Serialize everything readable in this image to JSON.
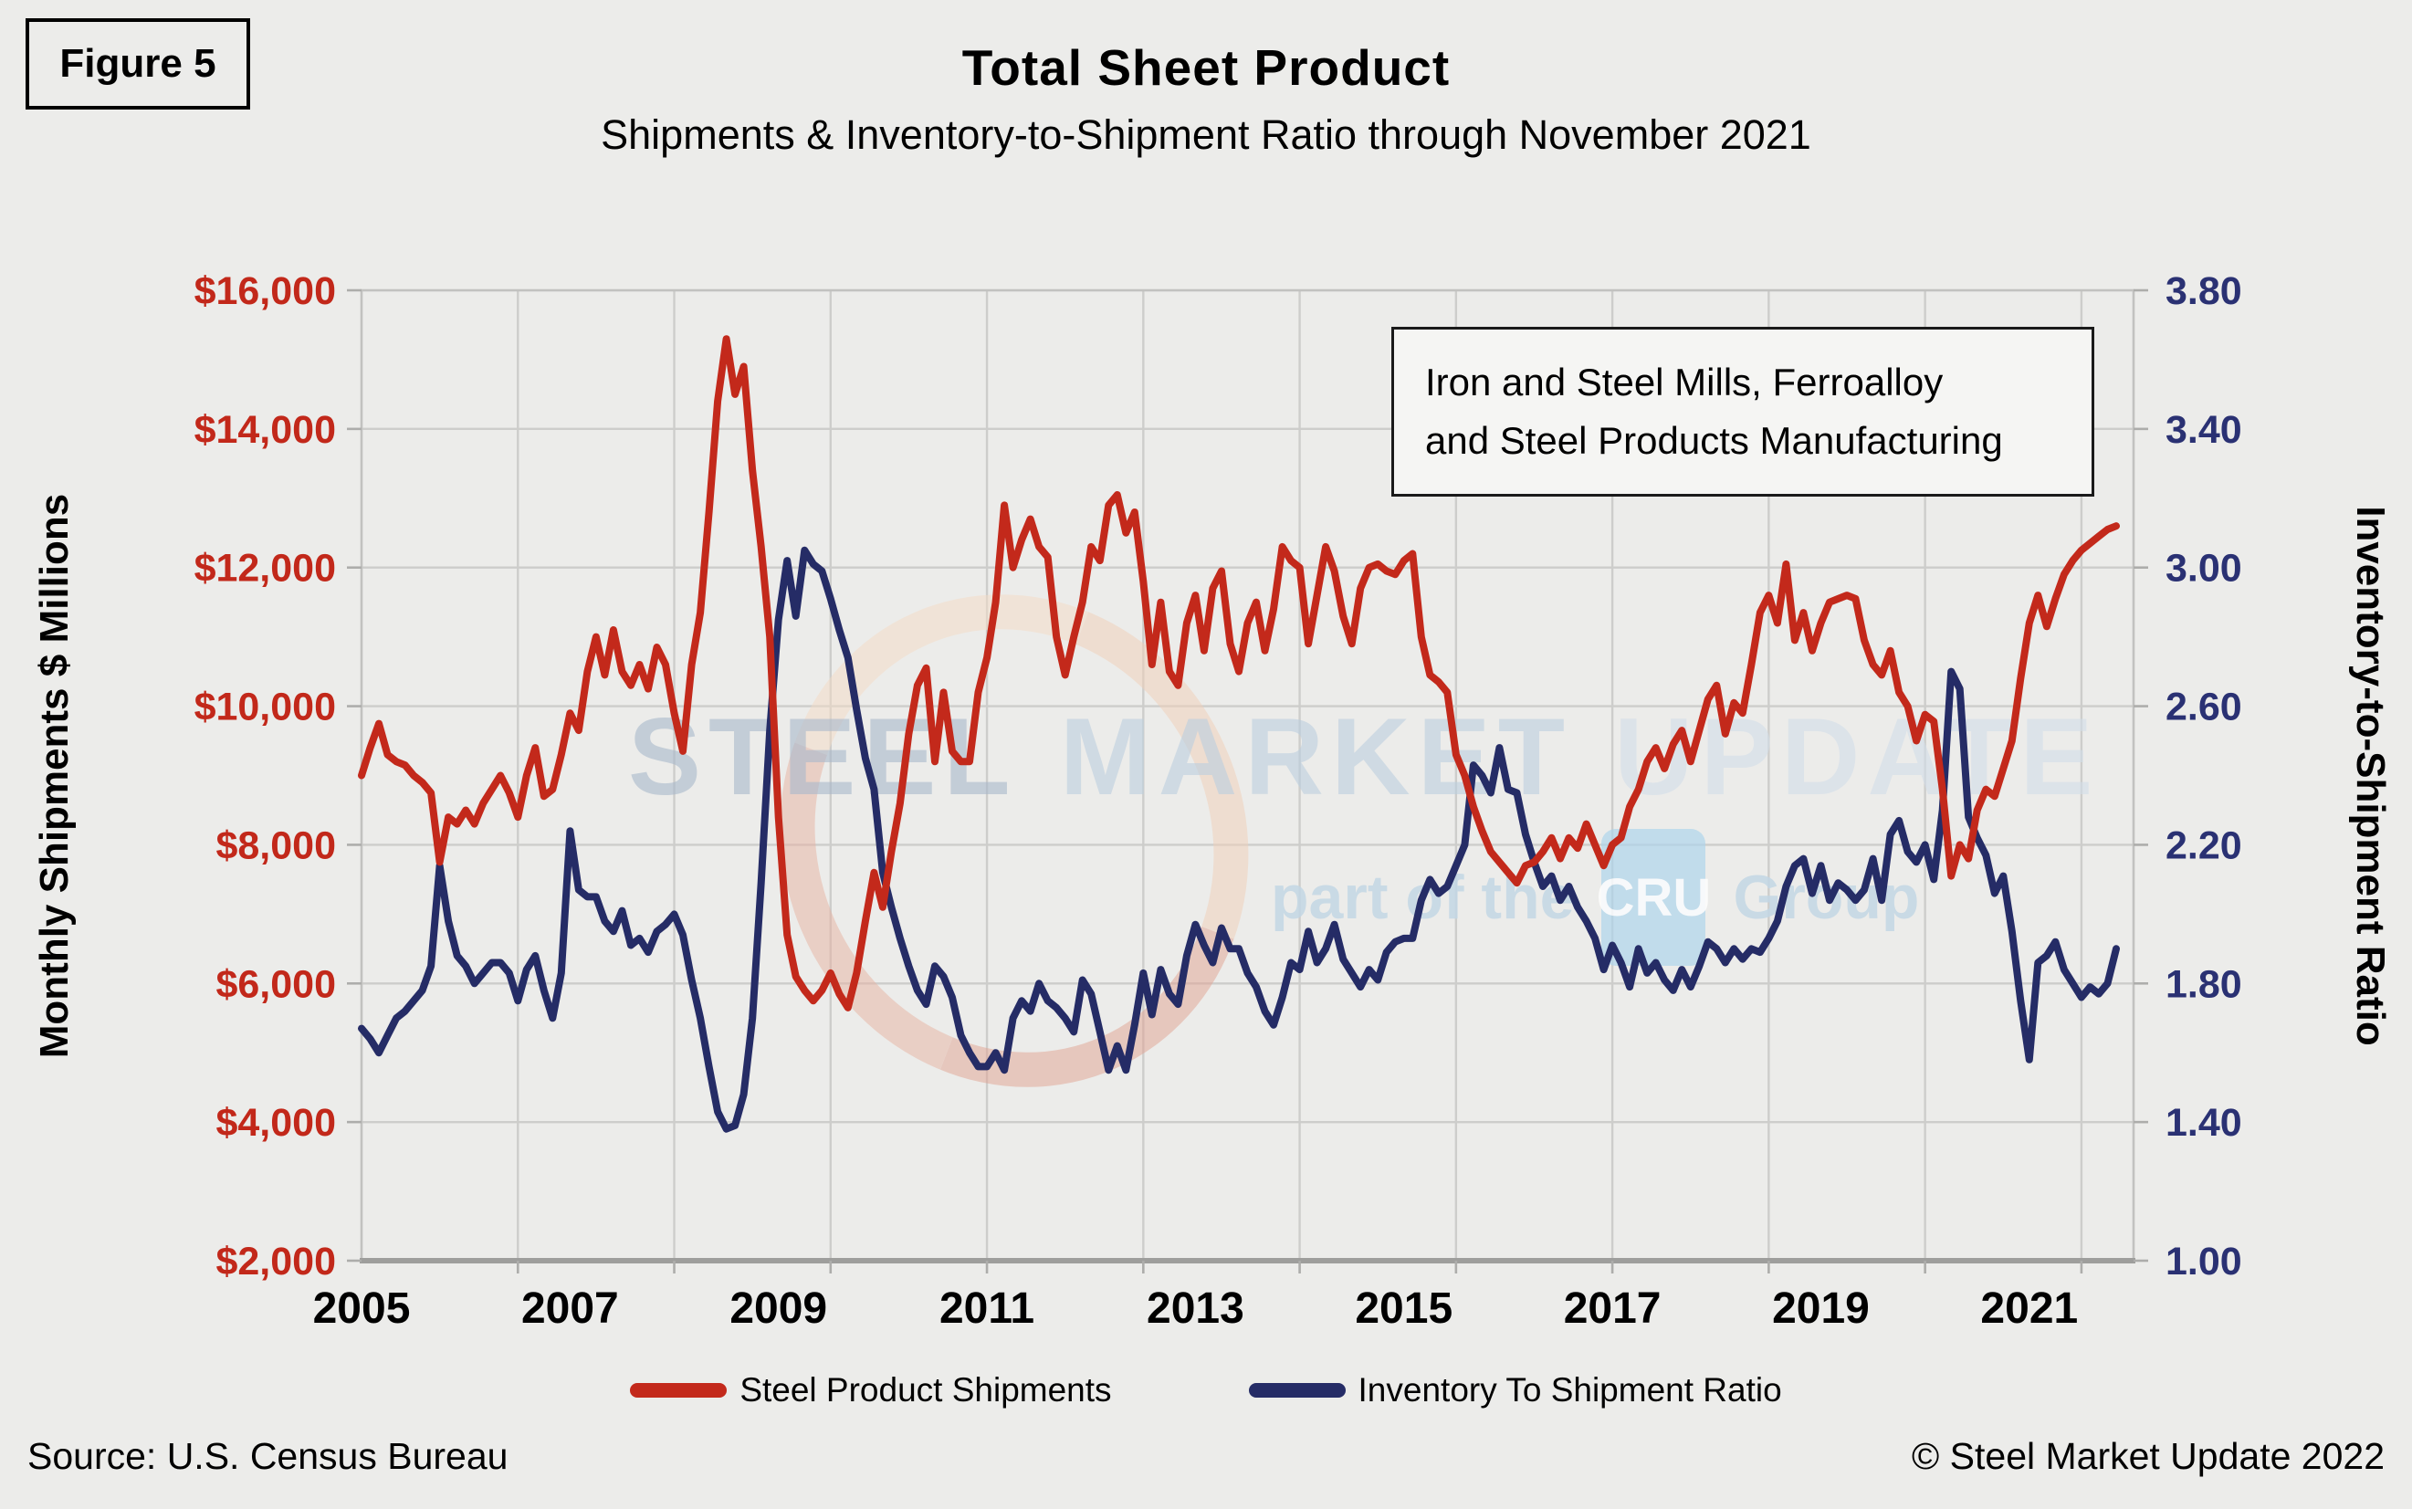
{
  "figure_label": "Figure 5",
  "title": "Total Sheet Product",
  "subtitle": "Shipments & Inventory-to-Shipment Ratio through November 2021",
  "annotation": {
    "line1": "Iron and Steel Mills, Ferroalloy",
    "line2": "and Steel Products Manufacturing"
  },
  "watermark": {
    "word1": "STEEL",
    "word2": "MARKET",
    "word3": "UPDATE",
    "tagline_prefix": "part of the",
    "cru": "CRU",
    "tagline_suffix": "Group"
  },
  "legend": [
    {
      "label": "Steel Product Shipments",
      "color": "#C3291B"
    },
    {
      "label": "Inventory To Shipment Ratio",
      "color": "#252C66"
    }
  ],
  "footer": {
    "source": "Source: U.S. Census Bureau",
    "copyright": "© Steel Market Update 2022"
  },
  "colors": {
    "background": "#ECECEA",
    "grid": "#CDCDCB",
    "plot_border": "#C2C2C0",
    "axis_line": "#9E9E9C",
    "tick_mark": "#ADADAB",
    "left_tick_text": "#C2281A",
    "right_tick_text": "#2A3173",
    "x_tick_text": "#000000"
  },
  "chart_data": {
    "type": "line",
    "frequency": "monthly",
    "x_start": "2005-01",
    "x_end": "2021-11",
    "x_axis": {
      "tick_years": [
        2005,
        2007,
        2009,
        2011,
        2013,
        2015,
        2017,
        2019,
        2021
      ],
      "tick_labels": [
        "2005",
        "2007",
        "2009",
        "2011",
        "2013",
        "2015",
        "2017",
        "2019",
        "2021"
      ],
      "gridline_interval_months": 18,
      "axis_span_months": 204
    },
    "left_axis": {
      "title": "Monthly Shipments $ Millions",
      "min": 2000,
      "max": 16000,
      "tick_step": 2000,
      "tick_values": [
        2000,
        4000,
        6000,
        8000,
        10000,
        12000,
        14000,
        16000
      ],
      "tick_labels": [
        "$2,000",
        "$4,000",
        "$6,000",
        "$8,000",
        "$10,000",
        "$12,000",
        "$14,000",
        "$16,000"
      ]
    },
    "right_axis": {
      "title": "Inventory-to-Shipment Ratio",
      "min": 1.0,
      "max": 3.8,
      "tick_step": 0.4,
      "tick_values": [
        1.0,
        1.4,
        1.8,
        2.2,
        2.6,
        3.0,
        3.4,
        3.8
      ],
      "tick_labels": [
        "1.00",
        "1.40",
        "1.80",
        "2.20",
        "2.60",
        "3.00",
        "3.40",
        "3.80"
      ]
    },
    "series": [
      {
        "name": "Steel Product Shipments",
        "axis": "left",
        "color": "#C3291B",
        "values": [
          9000,
          9400,
          9750,
          9300,
          9200,
          9150,
          9000,
          8900,
          8750,
          7750,
          8400,
          8300,
          8500,
          8300,
          8600,
          8800,
          9000,
          8750,
          8400,
          9000,
          9400,
          8700,
          8800,
          9300,
          9900,
          9650,
          10500,
          11000,
          10450,
          11100,
          10500,
          10300,
          10600,
          10250,
          10850,
          10600,
          9900,
          9350,
          10600,
          11350,
          12800,
          14400,
          15300,
          14500,
          14900,
          13400,
          12300,
          11000,
          8400,
          6700,
          6100,
          5900,
          5750,
          5900,
          6150,
          5850,
          5650,
          6150,
          6900,
          7600,
          7100,
          7900,
          8600,
          9600,
          10300,
          10550,
          9200,
          10200,
          9350,
          9200,
          9200,
          10200,
          10700,
          11500,
          12900,
          12000,
          12400,
          12700,
          12300,
          12150,
          11000,
          10450,
          11000,
          11500,
          12300,
          12100,
          12900,
          13050,
          12500,
          12800,
          11800,
          10600,
          11500,
          10500,
          10300,
          11200,
          11600,
          10800,
          11700,
          11950,
          10900,
          10500,
          11200,
          11500,
          10800,
          11400,
          12300,
          12100,
          12000,
          10900,
          11600,
          12300,
          11950,
          11300,
          10900,
          11700,
          12000,
          12050,
          11950,
          11900,
          12100,
          12200,
          11000,
          10450,
          10350,
          10200,
          9300,
          9000,
          8550,
          8200,
          7900,
          7750,
          7600,
          7450,
          7700,
          7750,
          7900,
          8100,
          7800,
          8100,
          7950,
          8300,
          8000,
          7700,
          8000,
          8100,
          8550,
          8800,
          9200,
          9400,
          9100,
          9450,
          9650,
          9200,
          9650,
          10100,
          10300,
          9600,
          10050,
          9900,
          10600,
          11350,
          11600,
          11200,
          12050,
          10950,
          11350,
          10800,
          11200,
          11500,
          11550,
          11600,
          11550,
          10950,
          10600,
          10450,
          10800,
          10200,
          10000,
          9500,
          9880,
          9780,
          8800,
          7550,
          8000,
          7800,
          8500,
          8800,
          8700,
          9100,
          9500,
          10400,
          11200,
          11600,
          11150,
          11550,
          11900,
          12100,
          12250,
          12350,
          12450,
          12550,
          12600
        ]
      },
      {
        "name": "Inventory To Shipment Ratio",
        "axis": "right",
        "color": "#252C66",
        "values": [
          1.67,
          1.64,
          1.6,
          1.65,
          1.7,
          1.72,
          1.75,
          1.78,
          1.85,
          2.14,
          1.98,
          1.88,
          1.85,
          1.8,
          1.83,
          1.86,
          1.86,
          1.83,
          1.75,
          1.84,
          1.88,
          1.78,
          1.7,
          1.83,
          2.24,
          2.07,
          2.05,
          2.05,
          1.98,
          1.95,
          2.01,
          1.91,
          1.93,
          1.89,
          1.95,
          1.97,
          2.0,
          1.94,
          1.81,
          1.7,
          1.56,
          1.43,
          1.38,
          1.39,
          1.48,
          1.7,
          2.09,
          2.53,
          2.85,
          3.02,
          2.86,
          3.05,
          3.01,
          2.99,
          2.91,
          2.82,
          2.74,
          2.59,
          2.45,
          2.36,
          2.12,
          2.02,
          1.93,
          1.85,
          1.78,
          1.74,
          1.85,
          1.82,
          1.76,
          1.65,
          1.6,
          1.56,
          1.56,
          1.6,
          1.55,
          1.7,
          1.75,
          1.72,
          1.8,
          1.75,
          1.73,
          1.7,
          1.66,
          1.81,
          1.77,
          1.66,
          1.55,
          1.62,
          1.55,
          1.68,
          1.83,
          1.71,
          1.84,
          1.77,
          1.74,
          1.88,
          1.97,
          1.91,
          1.86,
          1.96,
          1.9,
          1.9,
          1.83,
          1.79,
          1.72,
          1.68,
          1.76,
          1.86,
          1.84,
          1.95,
          1.86,
          1.9,
          1.97,
          1.87,
          1.83,
          1.79,
          1.84,
          1.81,
          1.89,
          1.92,
          1.93,
          1.93,
          2.04,
          2.1,
          2.06,
          2.08,
          2.14,
          2.2,
          2.43,
          2.4,
          2.35,
          2.48,
          2.36,
          2.35,
          2.23,
          2.15,
          2.08,
          2.11,
          2.04,
          2.08,
          2.02,
          1.98,
          1.93,
          1.84,
          1.91,
          1.86,
          1.79,
          1.9,
          1.83,
          1.86,
          1.81,
          1.78,
          1.84,
          1.79,
          1.85,
          1.92,
          1.9,
          1.86,
          1.9,
          1.87,
          1.9,
          1.89,
          1.93,
          1.98,
          2.08,
          2.14,
          2.16,
          2.06,
          2.14,
          2.04,
          2.09,
          2.07,
          2.04,
          2.07,
          2.16,
          2.04,
          2.23,
          2.27,
          2.18,
          2.15,
          2.2,
          2.1,
          2.3,
          2.7,
          2.65,
          2.28,
          2.22,
          2.17,
          2.06,
          2.11,
          1.95,
          1.75,
          1.58,
          1.86,
          1.88,
          1.92,
          1.84,
          1.8,
          1.76,
          1.79,
          1.77,
          1.8,
          1.9
        ]
      }
    ]
  }
}
